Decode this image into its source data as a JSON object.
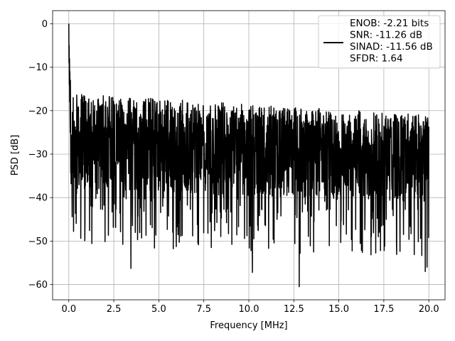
{
  "chart_data": {
    "type": "line",
    "xlabel": "Frequency [MHz]",
    "ylabel": "PSD [dB]",
    "xlim": [
      -0.9,
      20.9
    ],
    "ylim": [
      -63.5,
      3
    ],
    "xticks": [
      0.0,
      2.5,
      5.0,
      7.5,
      10.0,
      12.5,
      15.0,
      17.5,
      20.0
    ],
    "xtick_labels": [
      "0.0",
      "2.5",
      "5.0",
      "7.5",
      "10.0",
      "12.5",
      "15.0",
      "17.5",
      "20.0"
    ],
    "yticks": [
      0,
      -10,
      -20,
      -30,
      -40,
      -50,
      -60
    ],
    "ytick_labels": [
      "0",
      "−10",
      "−20",
      "−30",
      "−40",
      "−50",
      "−60"
    ],
    "grid": true,
    "legend_position": "top-right",
    "series": [
      {
        "color": "#000000",
        "x_range": [
          0.0,
          20.0
        ],
        "peak": {
          "x": 0.0,
          "y": 0.0
        },
        "noise_floor_start": -27,
        "noise_floor_end": -30,
        "upper_envelope_start": -16,
        "upper_envelope_end": -21,
        "notable_minima": [
          {
            "x": 3.45,
            "y": -56.3
          },
          {
            "x": 10.2,
            "y": -57.2
          },
          {
            "x": 12.8,
            "y": -60.5
          },
          {
            "x": 19.8,
            "y": -57.0
          },
          {
            "x": 19.9,
            "y": -56.0
          }
        ]
      }
    ],
    "legend": {
      "lines": [
        "ENOB: -2.21 bits",
        "SNR: -11.26 dB",
        "SINAD: -11.56 dB",
        "SFDR: 1.64"
      ]
    }
  }
}
